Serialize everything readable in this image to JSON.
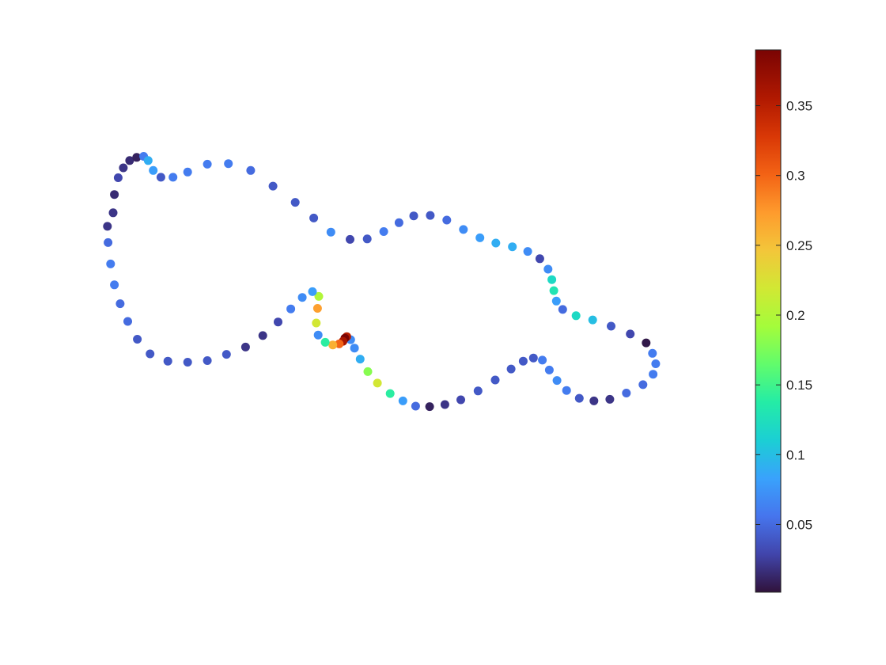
{
  "chart_data": {
    "type": "scatter",
    "title": "",
    "xlabel": "",
    "ylabel": "",
    "axes_visible": false,
    "xlim": [
      0,
      100
    ],
    "ylim": [
      0,
      100
    ],
    "colormap": "turbo",
    "colorbar": {
      "location": "right",
      "range": [
        0.0015,
        0.39
      ],
      "tick_values": [
        0.05,
        0.1,
        0.15,
        0.2,
        0.25,
        0.3,
        0.35
      ],
      "tick_labels": [
        "0.05",
        "0.1",
        "0.15",
        "0.2",
        "0.25",
        "0.3",
        "0.35"
      ]
    },
    "points": [
      {
        "x": 4.1,
        "y": 71.4,
        "c": 0.02
      },
      {
        "x": 4.3,
        "y": 74.9,
        "c": 0.015
      },
      {
        "x": 4.9,
        "y": 78.1,
        "c": 0.03
      },
      {
        "x": 5.7,
        "y": 80.0,
        "c": 0.02
      },
      {
        "x": 6.7,
        "y": 81.4,
        "c": 0.015
      },
      {
        "x": 7.8,
        "y": 82.0,
        "c": 0.01
      },
      {
        "x": 8.9,
        "y": 82.2,
        "c": 0.06
      },
      {
        "x": 9.6,
        "y": 81.4,
        "c": 0.09
      },
      {
        "x": 10.4,
        "y": 79.5,
        "c": 0.08
      },
      {
        "x": 11.6,
        "y": 78.2,
        "c": 0.04
      },
      {
        "x": 13.5,
        "y": 78.2,
        "c": 0.06
      },
      {
        "x": 15.8,
        "y": 79.2,
        "c": 0.06
      },
      {
        "x": 18.9,
        "y": 80.7,
        "c": 0.06
      },
      {
        "x": 22.2,
        "y": 80.8,
        "c": 0.06
      },
      {
        "x": 25.7,
        "y": 79.5,
        "c": 0.05
      },
      {
        "x": 29.2,
        "y": 76.5,
        "c": 0.04
      },
      {
        "x": 32.7,
        "y": 73.4,
        "c": 0.04
      },
      {
        "x": 35.6,
        "y": 70.4,
        "c": 0.04
      },
      {
        "x": 38.3,
        "y": 67.7,
        "c": 0.07
      },
      {
        "x": 41.3,
        "y": 66.3,
        "c": 0.03
      },
      {
        "x": 44.0,
        "y": 66.4,
        "c": 0.04
      },
      {
        "x": 46.6,
        "y": 67.8,
        "c": 0.06
      },
      {
        "x": 49.0,
        "y": 69.5,
        "c": 0.05
      },
      {
        "x": 51.3,
        "y": 70.8,
        "c": 0.04
      },
      {
        "x": 53.9,
        "y": 70.9,
        "c": 0.04
      },
      {
        "x": 56.5,
        "y": 70.0,
        "c": 0.05
      },
      {
        "x": 59.1,
        "y": 68.2,
        "c": 0.07
      },
      {
        "x": 61.7,
        "y": 66.6,
        "c": 0.08
      },
      {
        "x": 64.2,
        "y": 65.6,
        "c": 0.09
      },
      {
        "x": 66.8,
        "y": 64.9,
        "c": 0.09
      },
      {
        "x": 69.2,
        "y": 64.0,
        "c": 0.07
      },
      {
        "x": 71.1,
        "y": 62.6,
        "c": 0.03
      },
      {
        "x": 72.4,
        "y": 60.6,
        "c": 0.07
      },
      {
        "x": 73.0,
        "y": 58.6,
        "c": 0.12
      },
      {
        "x": 73.3,
        "y": 56.5,
        "c": 0.13
      },
      {
        "x": 73.7,
        "y": 54.5,
        "c": 0.08
      },
      {
        "x": 74.7,
        "y": 52.9,
        "c": 0.05
      },
      {
        "x": 76.8,
        "y": 51.7,
        "c": 0.12
      },
      {
        "x": 79.4,
        "y": 50.9,
        "c": 0.1
      },
      {
        "x": 82.3,
        "y": 49.7,
        "c": 0.04
      },
      {
        "x": 85.3,
        "y": 48.2,
        "c": 0.03
      },
      {
        "x": 87.8,
        "y": 46.5,
        "c": 0.005
      },
      {
        "x": 88.8,
        "y": 44.5,
        "c": 0.06
      },
      {
        "x": 89.3,
        "y": 42.5,
        "c": 0.06
      },
      {
        "x": 88.9,
        "y": 40.5,
        "c": 0.06
      },
      {
        "x": 87.3,
        "y": 38.5,
        "c": 0.05
      },
      {
        "x": 84.7,
        "y": 36.9,
        "c": 0.05
      },
      {
        "x": 82.1,
        "y": 35.7,
        "c": 0.02
      },
      {
        "x": 79.6,
        "y": 35.4,
        "c": 0.02
      },
      {
        "x": 77.3,
        "y": 35.9,
        "c": 0.04
      },
      {
        "x": 75.3,
        "y": 37.4,
        "c": 0.06
      },
      {
        "x": 73.8,
        "y": 39.3,
        "c": 0.07
      },
      {
        "x": 72.6,
        "y": 41.3,
        "c": 0.06
      },
      {
        "x": 71.5,
        "y": 43.2,
        "c": 0.06
      },
      {
        "x": 70.1,
        "y": 43.6,
        "c": 0.04
      },
      {
        "x": 68.5,
        "y": 43.0,
        "c": 0.04
      },
      {
        "x": 66.6,
        "y": 41.5,
        "c": 0.04
      },
      {
        "x": 64.1,
        "y": 39.4,
        "c": 0.04
      },
      {
        "x": 61.4,
        "y": 37.3,
        "c": 0.04
      },
      {
        "x": 58.7,
        "y": 35.6,
        "c": 0.03
      },
      {
        "x": 56.2,
        "y": 34.7,
        "c": 0.02
      },
      {
        "x": 53.8,
        "y": 34.3,
        "c": 0.01
      },
      {
        "x": 51.6,
        "y": 34.4,
        "c": 0.05
      },
      {
        "x": 49.6,
        "y": 35.4,
        "c": 0.08
      },
      {
        "x": 47.6,
        "y": 36.8,
        "c": 0.14
      },
      {
        "x": 45.6,
        "y": 38.8,
        "c": 0.22
      },
      {
        "x": 44.1,
        "y": 41.0,
        "c": 0.18
      },
      {
        "x": 42.9,
        "y": 43.4,
        "c": 0.09
      },
      {
        "x": 42.0,
        "y": 45.5,
        "c": 0.07
      },
      {
        "x": 41.4,
        "y": 47.1,
        "c": 0.07
      },
      {
        "x": 40.8,
        "y": 47.7,
        "c": 0.35
      },
      {
        "x": 40.5,
        "y": 47.4,
        "c": 0.39
      },
      {
        "x": 40.2,
        "y": 46.8,
        "c": 0.36
      },
      {
        "x": 39.6,
        "y": 46.3,
        "c": 0.3
      },
      {
        "x": 38.6,
        "y": 46.1,
        "c": 0.26
      },
      {
        "x": 37.4,
        "y": 46.6,
        "c": 0.14
      },
      {
        "x": 36.3,
        "y": 48.0,
        "c": 0.07
      },
      {
        "x": 36.0,
        "y": 50.3,
        "c": 0.22
      },
      {
        "x": 36.2,
        "y": 53.1,
        "c": 0.27
      },
      {
        "x": 36.4,
        "y": 55.4,
        "c": 0.2
      },
      {
        "x": 35.4,
        "y": 56.3,
        "c": 0.08
      },
      {
        "x": 33.8,
        "y": 55.2,
        "c": 0.07
      },
      {
        "x": 32.0,
        "y": 53.0,
        "c": 0.06
      },
      {
        "x": 30.0,
        "y": 50.5,
        "c": 0.03
      },
      {
        "x": 27.6,
        "y": 47.9,
        "c": 0.02
      },
      {
        "x": 24.9,
        "y": 45.7,
        "c": 0.02
      },
      {
        "x": 21.9,
        "y": 44.3,
        "c": 0.04
      },
      {
        "x": 18.9,
        "y": 43.1,
        "c": 0.04
      },
      {
        "x": 15.8,
        "y": 42.8,
        "c": 0.04
      },
      {
        "x": 12.7,
        "y": 43.0,
        "c": 0.04
      },
      {
        "x": 9.9,
        "y": 44.4,
        "c": 0.04
      },
      {
        "x": 7.9,
        "y": 47.2,
        "c": 0.04
      },
      {
        "x": 6.4,
        "y": 50.6,
        "c": 0.05
      },
      {
        "x": 5.2,
        "y": 54.0,
        "c": 0.05
      },
      {
        "x": 4.3,
        "y": 57.6,
        "c": 0.06
      },
      {
        "x": 3.7,
        "y": 61.6,
        "c": 0.06
      },
      {
        "x": 3.3,
        "y": 65.7,
        "c": 0.05
      },
      {
        "x": 3.2,
        "y": 68.8,
        "c": 0.02
      }
    ]
  }
}
